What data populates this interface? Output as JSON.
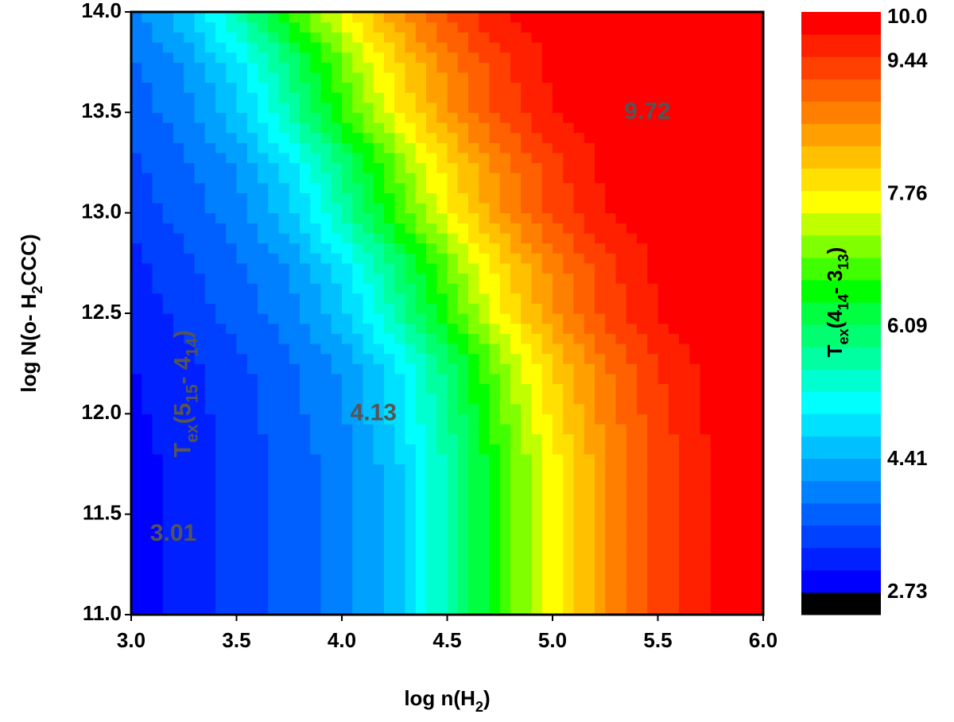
{
  "chart_data": {
    "type": "contour",
    "x_label": [
      {
        "text": "log n(H"
      },
      {
        "text": "2",
        "sub": true
      },
      {
        "text": ")"
      }
    ],
    "y_label": [
      {
        "text": "log N(o- H"
      },
      {
        "text": "2",
        "sub": true
      },
      {
        "text": "CCC)"
      }
    ],
    "colorbar_label": [
      {
        "text": "T"
      },
      {
        "text": "ex",
        "sub": true
      },
      {
        "text": "(4"
      },
      {
        "text": "14",
        "sub": true
      },
      {
        "text": "- 3"
      },
      {
        "text": "13",
        "sub": true
      },
      {
        "text": ")"
      }
    ],
    "annotations": [
      {
        "x": 5.45,
        "y": 13.5,
        "parts": [
          {
            "text": "9.72"
          }
        ]
      },
      {
        "x": 4.15,
        "y": 12.0,
        "parts": [
          {
            "text": "4.13"
          }
        ]
      },
      {
        "x": 3.2,
        "y": 11.4,
        "parts": [
          {
            "text": "3.01"
          }
        ]
      },
      {
        "x": 3.25,
        "y": 12.1,
        "rotate": -90,
        "color": "#555555",
        "parts": [
          {
            "text": "T"
          },
          {
            "text": "ex",
            "sub": true
          },
          {
            "text": "(5"
          },
          {
            "text": "15",
            "sub": true
          },
          {
            "text": "- 4"
          },
          {
            "text": "14",
            "sub": true
          },
          {
            "text": ")"
          }
        ]
      }
    ],
    "xlim": [
      3.0,
      6.0
    ],
    "xticks": [
      {
        "value": 3,
        "label": "3.0"
      },
      3.5,
      {
        "value": 4,
        "label": "4.0"
      },
      4.5,
      {
        "value": 5,
        "label": "5.0"
      },
      5.5,
      {
        "value": 6,
        "label": "6.0"
      }
    ],
    "ylim": [
      11.0,
      14.0
    ],
    "yticks": [
      {
        "value": 11,
        "label": "11.0"
      },
      11.5,
      {
        "value": 12,
        "label": "12.0"
      },
      12.5,
      {
        "value": 13,
        "label": "13.0"
      },
      13.5,
      {
        "value": 14,
        "label": "14.0"
      }
    ],
    "zlim": [
      2.45,
      10.07
    ],
    "zticks": [
      2.73,
      4.41,
      6.09,
      7.76,
      9.44,
      {
        "value": 10,
        "label": "10.0"
      }
    ],
    "colors": [
      "#000000",
      "#0000ff",
      "#0020ff",
      "#0040ff",
      "#0060ff",
      "#0080ff",
      "#00a0ff",
      "#00c0ff",
      "#00e0ff",
      "#00ffff",
      "#00ffd0",
      "#00ffa0",
      "#00ff70",
      "#00ff40",
      "#00ff00",
      "#40ff00",
      "#80ff00",
      "#c0ff00",
      "#ffff00",
      "#ffe000",
      "#ffc000",
      "#ffa000",
      "#ff8000",
      "#ff6000",
      "#ff4000",
      "#ff2000",
      "#ff0000"
    ],
    "grid_x": [
      3.0,
      3.25,
      3.5,
      3.75,
      4.0,
      4.25,
      4.5,
      4.75,
      5.0,
      5.25,
      5.5,
      5.75,
      6.0
    ],
    "grid_y": [
      11.0,
      11.25,
      11.5,
      11.75,
      12.0,
      12.25,
      12.5,
      12.75,
      13.0,
      13.25,
      13.5,
      13.75,
      14.0
    ],
    "z": [
      [
        2.9,
        3.1,
        3.4,
        3.7,
        4.0,
        4.6,
        5.6,
        6.7,
        7.7,
        8.6,
        9.3,
        9.8,
        10.0
      ],
      [
        2.9,
        3.1,
        3.4,
        3.7,
        4.0,
        4.6,
        5.6,
        6.7,
        7.7,
        8.6,
        9.3,
        9.8,
        10.0
      ],
      [
        2.9,
        3.1,
        3.4,
        3.7,
        4.0,
        4.6,
        5.6,
        6.7,
        7.7,
        8.6,
        9.3,
        9.8,
        10.0
      ],
      [
        2.9,
        3.1,
        3.4,
        3.7,
        4.0,
        4.6,
        5.6,
        6.7,
        7.7,
        8.6,
        9.3,
        9.8,
        10.0
      ],
      [
        2.95,
        3.15,
        3.45,
        3.75,
        4.1,
        4.8,
        5.8,
        6.9,
        7.9,
        8.8,
        9.4,
        9.85,
        10.0
      ],
      [
        3.0,
        3.2,
        3.5,
        3.8,
        4.2,
        4.9,
        6.0,
        7.1,
        8.1,
        8.9,
        9.5,
        9.9,
        10.0
      ],
      [
        3.1,
        3.4,
        3.7,
        4.0,
        4.6,
        5.6,
        6.7,
        7.7,
        8.6,
        9.3,
        9.8,
        10.0,
        10.0
      ],
      [
        3.2,
        3.5,
        3.8,
        4.2,
        4.9,
        5.9,
        7.0,
        8.0,
        8.8,
        9.4,
        9.85,
        10.0,
        10.0
      ],
      [
        3.4,
        3.7,
        4.0,
        4.6,
        5.6,
        6.7,
        7.7,
        8.6,
        9.3,
        9.8,
        10.0,
        10.0,
        10.0
      ],
      [
        3.5,
        3.8,
        4.2,
        4.9,
        5.9,
        7.0,
        8.0,
        8.8,
        9.4,
        9.85,
        10.0,
        10.0,
        10.0
      ],
      [
        3.7,
        4.0,
        4.6,
        5.6,
        6.7,
        7.7,
        8.6,
        9.3,
        9.8,
        10.0,
        10.0,
        10.0,
        10.0
      ],
      [
        3.8,
        4.2,
        4.9,
        5.9,
        7.0,
        8.0,
        8.8,
        9.4,
        9.85,
        10.0,
        10.0,
        10.0,
        10.0
      ],
      [
        4.0,
        4.6,
        5.6,
        6.7,
        7.7,
        8.6,
        9.3,
        9.8,
        10.0,
        10.0,
        10.0,
        10.0,
        10.0
      ]
    ]
  }
}
